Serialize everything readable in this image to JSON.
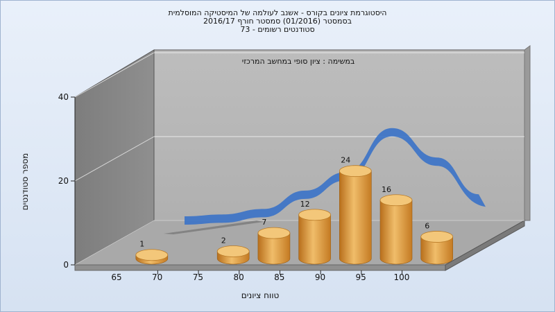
{
  "header": {
    "line1": "היסטוגרמת ציונים בקורס - אשנב לעולמה של המיסטיקה המוסלמית",
    "line2": "בסמסטר  (01/2016)  סמסטר חורף 2016/17",
    "line3": "סטודנטים רשומים - 73"
  },
  "chart_data": {
    "type": "bar",
    "subtitle": "במשימה : ציון סופי במחשב המרכזי",
    "xlabel": "טווח ציונים",
    "ylabel": "מספר סטודנטים",
    "x_ticks": [
      "65",
      "70",
      "75",
      "80",
      "85",
      "90",
      "95",
      "100"
    ],
    "y_ticks": [
      0,
      20,
      40
    ],
    "ylim": [
      0,
      40
    ],
    "series": [
      {
        "categories": [
          "65",
          "75",
          "80",
          "85",
          "90",
          "95",
          "100"
        ],
        "values": [
          1,
          2,
          7,
          12,
          24,
          16,
          6
        ]
      }
    ],
    "trend_line": true,
    "grid": true,
    "style": "3d-cylinder",
    "colors": {
      "bar": "#e5a24a",
      "trend": "#3a72c8",
      "back_wall": "#b4b4b4",
      "side_wall": "#8a8a8a",
      "floor": "#a9a9a9"
    }
  }
}
